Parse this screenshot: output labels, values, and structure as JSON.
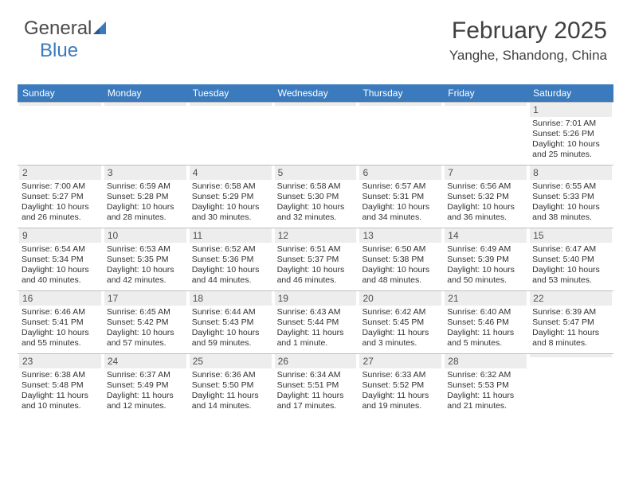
{
  "logo": {
    "text_a": "General",
    "text_b": "Blue",
    "accent_color": "#3a7abd"
  },
  "header": {
    "month_title": "February 2025",
    "location": "Yanghe, Shandong, China"
  },
  "style": {
    "header_bg": "#3a7abd",
    "header_fg": "#ffffff",
    "daynum_bg": "#ededed",
    "border_color": "#bfbfbf",
    "body_fontsize": 10.5,
    "header_fontsize": 12,
    "title_fontsize": 30,
    "location_fontsize": 17
  },
  "day_names": [
    "Sunday",
    "Monday",
    "Tuesday",
    "Wednesday",
    "Thursday",
    "Friday",
    "Saturday"
  ],
  "weeks": [
    [
      {
        "num": "",
        "lines": []
      },
      {
        "num": "",
        "lines": []
      },
      {
        "num": "",
        "lines": []
      },
      {
        "num": "",
        "lines": []
      },
      {
        "num": "",
        "lines": []
      },
      {
        "num": "",
        "lines": []
      },
      {
        "num": "1",
        "lines": [
          "Sunrise: 7:01 AM",
          "Sunset: 5:26 PM",
          "Daylight: 10 hours and 25 minutes."
        ]
      }
    ],
    [
      {
        "num": "2",
        "lines": [
          "Sunrise: 7:00 AM",
          "Sunset: 5:27 PM",
          "Daylight: 10 hours and 26 minutes."
        ]
      },
      {
        "num": "3",
        "lines": [
          "Sunrise: 6:59 AM",
          "Sunset: 5:28 PM",
          "Daylight: 10 hours and 28 minutes."
        ]
      },
      {
        "num": "4",
        "lines": [
          "Sunrise: 6:58 AM",
          "Sunset: 5:29 PM",
          "Daylight: 10 hours and 30 minutes."
        ]
      },
      {
        "num": "5",
        "lines": [
          "Sunrise: 6:58 AM",
          "Sunset: 5:30 PM",
          "Daylight: 10 hours and 32 minutes."
        ]
      },
      {
        "num": "6",
        "lines": [
          "Sunrise: 6:57 AM",
          "Sunset: 5:31 PM",
          "Daylight: 10 hours and 34 minutes."
        ]
      },
      {
        "num": "7",
        "lines": [
          "Sunrise: 6:56 AM",
          "Sunset: 5:32 PM",
          "Daylight: 10 hours and 36 minutes."
        ]
      },
      {
        "num": "8",
        "lines": [
          "Sunrise: 6:55 AM",
          "Sunset: 5:33 PM",
          "Daylight: 10 hours and 38 minutes."
        ]
      }
    ],
    [
      {
        "num": "9",
        "lines": [
          "Sunrise: 6:54 AM",
          "Sunset: 5:34 PM",
          "Daylight: 10 hours and 40 minutes."
        ]
      },
      {
        "num": "10",
        "lines": [
          "Sunrise: 6:53 AM",
          "Sunset: 5:35 PM",
          "Daylight: 10 hours and 42 minutes."
        ]
      },
      {
        "num": "11",
        "lines": [
          "Sunrise: 6:52 AM",
          "Sunset: 5:36 PM",
          "Daylight: 10 hours and 44 minutes."
        ]
      },
      {
        "num": "12",
        "lines": [
          "Sunrise: 6:51 AM",
          "Sunset: 5:37 PM",
          "Daylight: 10 hours and 46 minutes."
        ]
      },
      {
        "num": "13",
        "lines": [
          "Sunrise: 6:50 AM",
          "Sunset: 5:38 PM",
          "Daylight: 10 hours and 48 minutes."
        ]
      },
      {
        "num": "14",
        "lines": [
          "Sunrise: 6:49 AM",
          "Sunset: 5:39 PM",
          "Daylight: 10 hours and 50 minutes."
        ]
      },
      {
        "num": "15",
        "lines": [
          "Sunrise: 6:47 AM",
          "Sunset: 5:40 PM",
          "Daylight: 10 hours and 53 minutes."
        ]
      }
    ],
    [
      {
        "num": "16",
        "lines": [
          "Sunrise: 6:46 AM",
          "Sunset: 5:41 PM",
          "Daylight: 10 hours and 55 minutes."
        ]
      },
      {
        "num": "17",
        "lines": [
          "Sunrise: 6:45 AM",
          "Sunset: 5:42 PM",
          "Daylight: 10 hours and 57 minutes."
        ]
      },
      {
        "num": "18",
        "lines": [
          "Sunrise: 6:44 AM",
          "Sunset: 5:43 PM",
          "Daylight: 10 hours and 59 minutes."
        ]
      },
      {
        "num": "19",
        "lines": [
          "Sunrise: 6:43 AM",
          "Sunset: 5:44 PM",
          "Daylight: 11 hours and 1 minute."
        ]
      },
      {
        "num": "20",
        "lines": [
          "Sunrise: 6:42 AM",
          "Sunset: 5:45 PM",
          "Daylight: 11 hours and 3 minutes."
        ]
      },
      {
        "num": "21",
        "lines": [
          "Sunrise: 6:40 AM",
          "Sunset: 5:46 PM",
          "Daylight: 11 hours and 5 minutes."
        ]
      },
      {
        "num": "22",
        "lines": [
          "Sunrise: 6:39 AM",
          "Sunset: 5:47 PM",
          "Daylight: 11 hours and 8 minutes."
        ]
      }
    ],
    [
      {
        "num": "23",
        "lines": [
          "Sunrise: 6:38 AM",
          "Sunset: 5:48 PM",
          "Daylight: 11 hours and 10 minutes."
        ]
      },
      {
        "num": "24",
        "lines": [
          "Sunrise: 6:37 AM",
          "Sunset: 5:49 PM",
          "Daylight: 11 hours and 12 minutes."
        ]
      },
      {
        "num": "25",
        "lines": [
          "Sunrise: 6:36 AM",
          "Sunset: 5:50 PM",
          "Daylight: 11 hours and 14 minutes."
        ]
      },
      {
        "num": "26",
        "lines": [
          "Sunrise: 6:34 AM",
          "Sunset: 5:51 PM",
          "Daylight: 11 hours and 17 minutes."
        ]
      },
      {
        "num": "27",
        "lines": [
          "Sunrise: 6:33 AM",
          "Sunset: 5:52 PM",
          "Daylight: 11 hours and 19 minutes."
        ]
      },
      {
        "num": "28",
        "lines": [
          "Sunrise: 6:32 AM",
          "Sunset: 5:53 PM",
          "Daylight: 11 hours and 21 minutes."
        ]
      },
      {
        "num": "",
        "lines": []
      }
    ]
  ]
}
